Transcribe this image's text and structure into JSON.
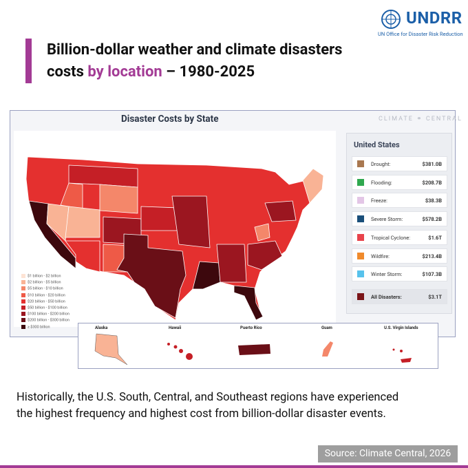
{
  "header": {
    "org": "UNDRR",
    "org_full": "UN Office for Disaster Risk Reduction",
    "title_line1": "Billion-dollar weather and climate disasters",
    "title_pre": "costs",
    "title_highlight": "by location",
    "title_post": "– 1980-2025"
  },
  "panel": {
    "title": "Disaster Costs by State",
    "brand": "CLIMATE ⚭ CENTRAL",
    "sidebar_title": "United States",
    "rows": [
      {
        "label": "Drought:",
        "value": "$381.0B",
        "color": "#a97850"
      },
      {
        "label": "Flooding:",
        "value": "$208.7B",
        "color": "#2fa84f"
      },
      {
        "label": "Freeze:",
        "value": "$38.3B",
        "color": "#e3c6e6"
      },
      {
        "label": "Severe Storm:",
        "value": "$578.2B",
        "color": "#1a4f7a"
      },
      {
        "label": "Tropical Cyclone:",
        "value": "$1.6T",
        "color": "#e8434b"
      },
      {
        "label": "Wildfire:",
        "value": "$213.4B",
        "color": "#f08a2c"
      },
      {
        "label": "Winter Storm:",
        "value": "$107.3B",
        "color": "#57c2ec"
      }
    ],
    "total": {
      "label": "All Disasters:",
      "value": "$3.1T",
      "color": "#7a1418"
    },
    "legend": [
      {
        "label": "$1 billion - $2 billion",
        "color": "#fde3d4"
      },
      {
        "label": "$2 billion - $5 billion",
        "color": "#f9b395"
      },
      {
        "label": "$5 billion - $10 billion",
        "color": "#f4876a"
      },
      {
        "label": "$10 billion - $20 billion",
        "color": "#ee5a47"
      },
      {
        "label": "$20 billion - $50 billion",
        "color": "#e4302f"
      },
      {
        "label": "$50 billion - $100 billion",
        "color": "#c51f26"
      },
      {
        "label": "$100 billion - $200 billion",
        "color": "#9b1620"
      },
      {
        "label": "$200 billion - $300 billion",
        "color": "#6a0f17"
      },
      {
        "label": "≥ $300 billion",
        "color": "#3d080d"
      }
    ],
    "insets": [
      "Alaska",
      "Hawaii",
      "Puerto Rico",
      "Guam",
      "U.S. Virgin Islands"
    ]
  },
  "body_lines": [
    "Historically, the U.S. South, Central, and Southeast regions have experienced",
    "the highest frequency and highest cost from billion-dollar disaster events."
  ],
  "source": "Source: Climate Central, 2026"
}
